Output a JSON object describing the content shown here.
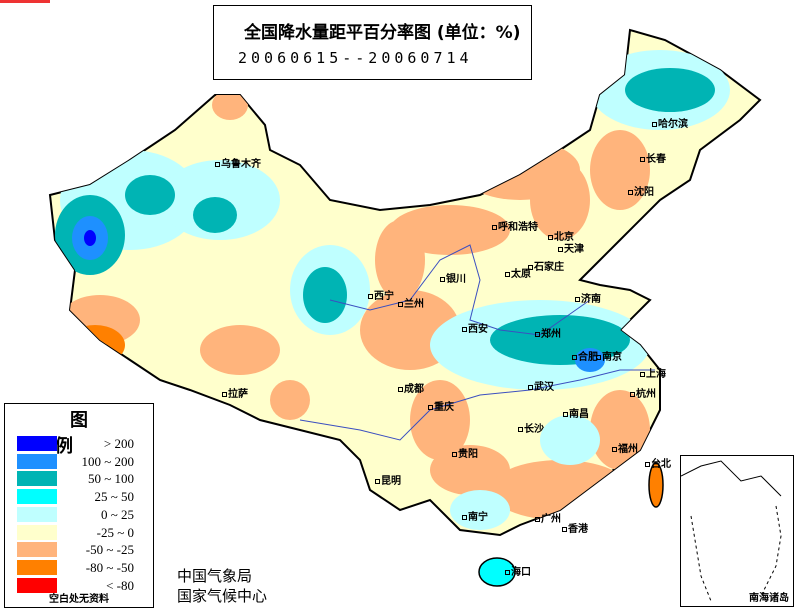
{
  "title": "全国降水量距平百分率图 (单位：%)",
  "period": "20060615--20060714",
  "legend": {
    "title": "图 例",
    "items": [
      {
        "label": "> 200",
        "color": "#0000FF"
      },
      {
        "label": "100 ~ 200",
        "color": "#1E90FF"
      },
      {
        "label": "50 ~ 100",
        "color": "#00B4B4"
      },
      {
        "label": "25 ~ 50",
        "color": "#00FFFF"
      },
      {
        "label": "0 ~ 25",
        "color": "#BFFFFF"
      },
      {
        "label": "-25 ~ 0",
        "color": "#FFFFCC"
      },
      {
        "label": "-50 ~ -25",
        "color": "#FFB47C"
      },
      {
        "label": "-80 ~ -50",
        "color": "#FF8000"
      },
      {
        "label": "< -80",
        "color": "#FF0000"
      }
    ],
    "note": "空白处无资料"
  },
  "agency": [
    "中国气象局",
    "国家气候中心"
  ],
  "inset_label": "南海诸岛",
  "cities": [
    "乌鲁木齐",
    "哈尔滨",
    "长春",
    "沈阳",
    "呼和浩特",
    "北京",
    "天津",
    "石家庄",
    "太原",
    "银川",
    "兰州",
    "西宁",
    "济南",
    "郑州",
    "西安",
    "合肥",
    "南京",
    "上海",
    "成都",
    "武汉",
    "杭州",
    "拉萨",
    "重庆",
    "南昌",
    "长沙",
    "贵阳",
    "福州",
    "台北",
    "昆明",
    "南宁",
    "广州",
    "香港",
    "海口"
  ]
}
